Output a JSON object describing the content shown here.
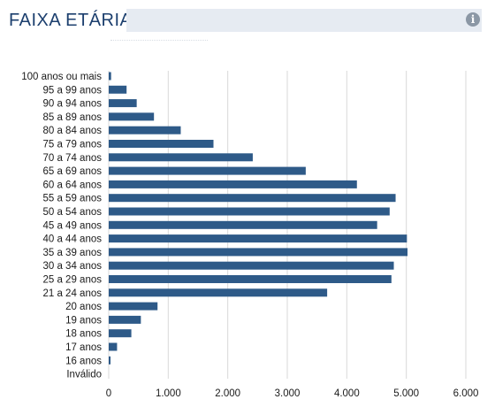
{
  "header": {
    "title": "FAIXA ETÁRIA",
    "info_icon": "info-icon"
  },
  "colors": {
    "bar": "#2e5a88",
    "title": "#1c3f6e",
    "title_bar": "#e6ebf2",
    "grid": "#d9d9d9"
  },
  "chart_data": {
    "type": "bar",
    "orientation": "horizontal",
    "title": "FAIXA ETÁRIA",
    "xlabel": "",
    "ylabel": "",
    "xlim": [
      0,
      6000
    ],
    "grid": true,
    "legend": "none",
    "x_ticks": [
      0,
      1000,
      2000,
      3000,
      4000,
      5000,
      6000
    ],
    "x_tick_labels": [
      "0",
      "1.000",
      "2.000",
      "3.000",
      "4.000",
      "5.000",
      "6.000"
    ],
    "categories": [
      "100 anos ou mais",
      "95 a 99 anos",
      "90 a 94 anos",
      "85 a 89 anos",
      "80 a 84 anos",
      "75 a 79 anos",
      "70 a 74 anos",
      "65 a 69 anos",
      "60 a 64 anos",
      "55 a 59 anos",
      "50 a 54 anos",
      "45 a 49 anos",
      "40 a 44 anos",
      "35 a 39 anos",
      "30 a 34 anos",
      "25 a 29 anos",
      "21 a 24 anos",
      "20 anos",
      "19 anos",
      "18 anos",
      "17 anos",
      "16 anos",
      "Inválido"
    ],
    "values": [
      40,
      300,
      470,
      760,
      1210,
      1760,
      2420,
      3310,
      4170,
      4820,
      4720,
      4510,
      5010,
      5020,
      4790,
      4750,
      3670,
      820,
      540,
      380,
      140,
      30,
      0
    ]
  }
}
